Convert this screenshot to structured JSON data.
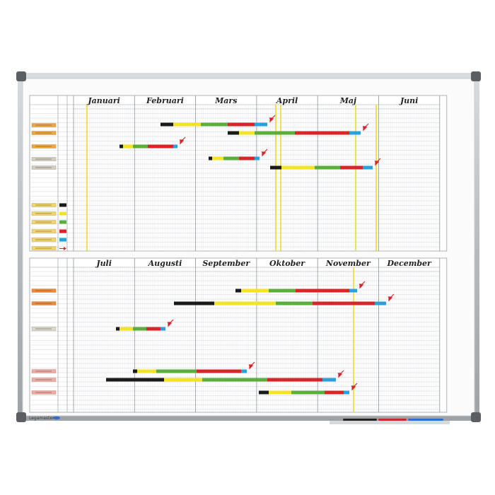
{
  "board": {
    "top_panel": {
      "months": [
        "Januari",
        "Februari",
        "Mars",
        "April",
        "Maj",
        "Juni"
      ]
    },
    "bottom_panel": {
      "months": [
        "Juli",
        "Augusti",
        "September",
        "Oktober",
        "November",
        "December"
      ]
    },
    "brand": "Legamaster"
  }
}
